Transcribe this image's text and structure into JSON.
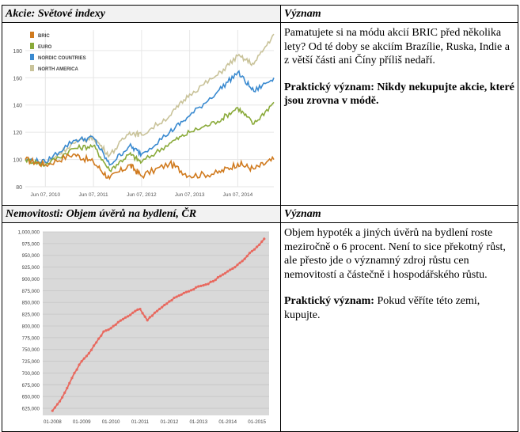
{
  "table": {
    "row1": {
      "left_header": "Akcie: Světové indexy",
      "right_header": "Význam",
      "text1": "Pamatujete si na módu akcií BRIC před několika lety? Od té doby se akciím Brazílie, Ruska, Indie a z větší části ani Číny příliš nedaří.",
      "text2": "Praktický význam: Nikdy nekupujte akcie, které jsou zrovna v módě."
    },
    "row2": {
      "left_header": "Nemovitosti: Objem úvěrů na bydlení, ČR",
      "right_header": "Význam",
      "text1": "Objem hypoték a jiných úvěrů na bydlení roste meziročně o 6 procent. Není to sice překotný růst, ale přesto jde o významný zdroj růstu cen nemovitostí a částečně i hospodářského růstu.",
      "text2_lead": "Praktický význam:",
      "text2_rest": " Pokud věříte této zemi, kupujte."
    }
  },
  "chart_data": [
    {
      "type": "line",
      "title": "",
      "xlabel": "",
      "ylabel": "",
      "x_ticks": [
        "Jun 07, 2010",
        "Jun 07, 2011",
        "Jun 07, 2012",
        "Jun 07, 2013",
        "Jun 07, 2014"
      ],
      "y_ticks": [
        80,
        100,
        120,
        140,
        160,
        180
      ],
      "ylim": [
        80,
        195
      ],
      "legend": "top-left",
      "grid": true,
      "series": [
        {
          "name": "BRIC",
          "color": "#d07a1e",
          "x": [
            "2010-01",
            "2010-06",
            "2011-01",
            "2011-06",
            "2011-10",
            "2012-03",
            "2012-06",
            "2013-01",
            "2013-06",
            "2014-01",
            "2014-06",
            "2014-10",
            "2015-03"
          ],
          "values": [
            100,
            96,
            104,
            98,
            86,
            96,
            88,
            97,
            88,
            90,
            97,
            93,
            100
          ]
        },
        {
          "name": "EURO",
          "color": "#8aaa3a",
          "x": [
            "2010-01",
            "2010-06",
            "2011-01",
            "2011-06",
            "2011-10",
            "2012-03",
            "2012-06",
            "2013-01",
            "2013-06",
            "2014-01",
            "2014-06",
            "2014-10",
            "2015-03"
          ],
          "values": [
            100,
            96,
            108,
            110,
            92,
            104,
            98,
            112,
            120,
            128,
            138,
            126,
            142
          ]
        },
        {
          "name": "NORDIC COUNTRIES",
          "color": "#3a8ad0",
          "x": [
            "2010-01",
            "2010-06",
            "2011-01",
            "2011-06",
            "2011-10",
            "2012-03",
            "2012-06",
            "2013-01",
            "2013-06",
            "2014-01",
            "2014-06",
            "2014-10",
            "2015-03"
          ],
          "values": [
            100,
            98,
            114,
            116,
            96,
            110,
            104,
            120,
            132,
            150,
            164,
            150,
            160
          ]
        },
        {
          "name": "NORTH AMERICA",
          "color": "#c9c39a",
          "x": [
            "2010-01",
            "2010-06",
            "2011-01",
            "2011-06",
            "2011-10",
            "2012-03",
            "2012-06",
            "2013-01",
            "2013-06",
            "2014-01",
            "2014-06",
            "2014-10",
            "2015-03"
          ],
          "values": [
            100,
            97,
            112,
            116,
            103,
            120,
            118,
            132,
            148,
            162,
            176,
            170,
            192
          ]
        }
      ]
    },
    {
      "type": "line",
      "title": "",
      "xlabel": "",
      "ylabel": "",
      "x_ticks": [
        "01-2008",
        "01-2009",
        "01-2010",
        "01-2011",
        "01-2012",
        "01-2013",
        "01-2014",
        "01-2015"
      ],
      "y_ticks": [
        625000,
        650000,
        675000,
        700000,
        725000,
        750000,
        775000,
        800000,
        825000,
        850000,
        875000,
        900000,
        925000,
        950000,
        975000,
        1000000
      ],
      "y_tick_labels": [
        "625,000",
        "650,000",
        "675,000",
        "700,000",
        "725,000",
        "750,000",
        "775,000",
        "800,000",
        "825,000",
        "850,000",
        "875,000",
        "900,000",
        "925,000",
        "950,000",
        "975,000",
        "1,000,000"
      ],
      "ylim": [
        610000,
        1000000
      ],
      "grid": true,
      "series": [
        {
          "color": "#e8695f",
          "x": [
            "2008-01",
            "2008-04",
            "2008-07",
            "2008-10",
            "2009-01",
            "2009-04",
            "2009-07",
            "2009-10",
            "2010-01",
            "2010-04",
            "2010-07",
            "2010-10",
            "2011-01",
            "2011-04",
            "2011-07",
            "2011-10",
            "2012-01",
            "2012-04",
            "2012-07",
            "2012-10",
            "2013-01",
            "2013-04",
            "2013-07",
            "2013-10",
            "2014-01",
            "2014-04",
            "2014-07",
            "2014-10",
            "2015-01",
            "2015-04"
          ],
          "values": [
            620000,
            640000,
            668000,
            700000,
            725000,
            742000,
            765000,
            788000,
            795000,
            808000,
            818000,
            828000,
            836000,
            812000,
            828000,
            840000,
            852000,
            862000,
            870000,
            876000,
            884000,
            888000,
            895000,
            906000,
            916000,
            925000,
            938000,
            955000,
            968000,
            985000
          ]
        }
      ]
    }
  ]
}
